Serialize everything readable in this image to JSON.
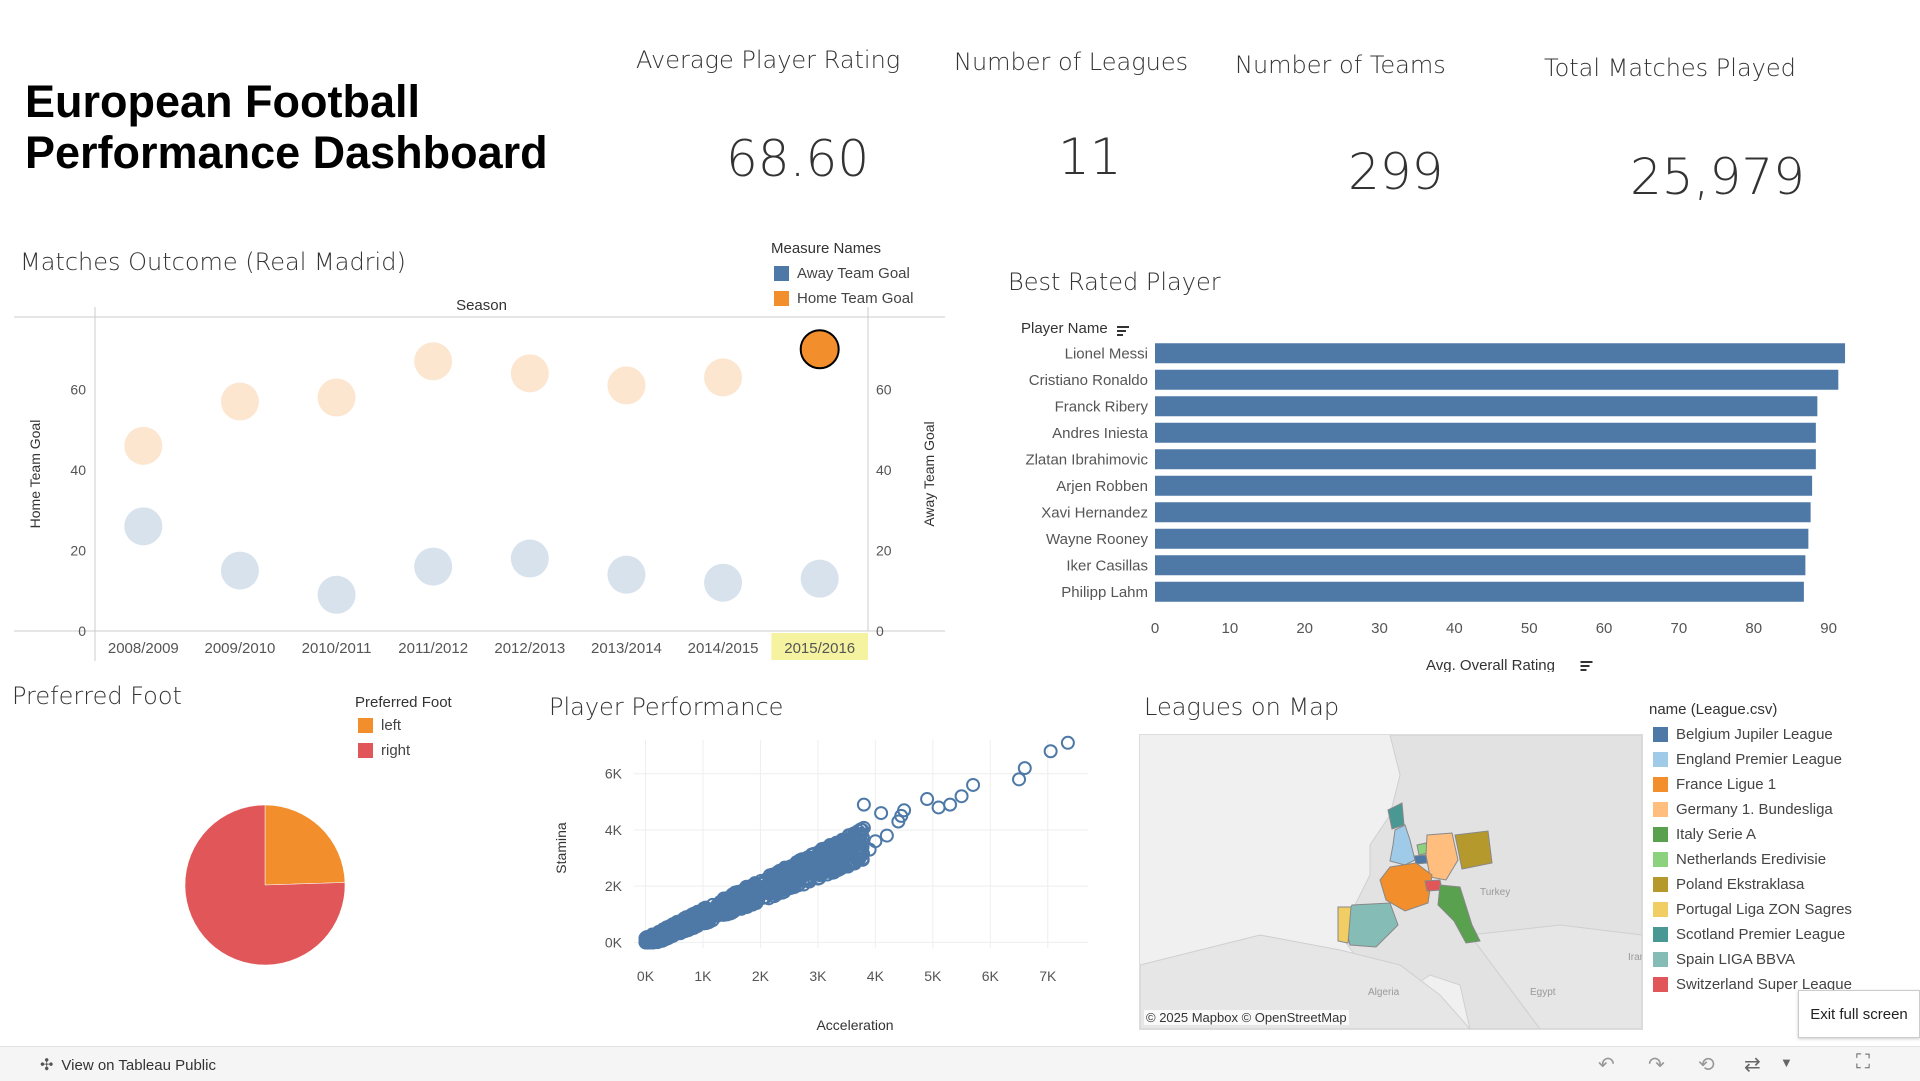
{
  "dashboard": {
    "title": "European Football Performance Dashboard"
  },
  "kpis": [
    {
      "label": "Average Player Rating",
      "value": "68.60"
    },
    {
      "label": "Number of Leagues",
      "value": "11"
    },
    {
      "label": "Number of Teams",
      "value": "299"
    },
    {
      "label": "Total Matches Played",
      "value": "25,979"
    }
  ],
  "matches_outcome": {
    "title": "Matches Outcome (Real Madrid)",
    "legend_title": "Measure Names",
    "legend": [
      {
        "label": "Away Team Goal",
        "color": "#4e79a7"
      },
      {
        "label": "Home Team Goal",
        "color": "#f28e2b"
      }
    ],
    "season_label": "Season",
    "highlighted_season": "2015/2016"
  },
  "best_rated": {
    "title": "Best Rated Player",
    "header": "Player Name",
    "xlabel": "Avg. Overall Rating"
  },
  "preferred_foot": {
    "title": "Preferred Foot",
    "legend_title": "Preferred Foot",
    "legend": [
      {
        "label": "left",
        "color": "#f28e2b"
      },
      {
        "label": "right",
        "color": "#e15759"
      }
    ]
  },
  "player_performance": {
    "title": "Player Performance"
  },
  "leagues_map": {
    "title": "Leagues on Map",
    "legend_title": "name (League.csv)",
    "legend": [
      {
        "label": "Belgium Jupiler League",
        "color": "#4e79a7"
      },
      {
        "label": "England Premier League",
        "color": "#a0cbe8"
      },
      {
        "label": "France Ligue 1",
        "color": "#f28e2b"
      },
      {
        "label": "Germany 1. Bundesliga",
        "color": "#ffbe7d"
      },
      {
        "label": "Italy Serie A",
        "color": "#59a14f"
      },
      {
        "label": "Netherlands Eredivisie",
        "color": "#8cd17d"
      },
      {
        "label": "Poland Ekstraklasa",
        "color": "#b6992d"
      },
      {
        "label": "Portugal Liga ZON Sagres",
        "color": "#f1ce63"
      },
      {
        "label": "Scotland Premier League",
        "color": "#499894"
      },
      {
        "label": "Spain LIGA BBVA",
        "color": "#86bcb6"
      },
      {
        "label": "Switzerland Super League",
        "color": "#e15759"
      }
    ],
    "attribution": "© 2025 Mapbox  © OpenStreetMap",
    "map_labels": [
      "Turkey",
      "Algeria",
      "Egypt",
      "Iran"
    ]
  },
  "footer": {
    "view_on_tableau": "View on Tableau Public",
    "exit_full_screen": "Exit full screen"
  },
  "chart_data": [
    {
      "type": "scatter",
      "title": "Matches Outcome (Real Madrid)",
      "xlabel": "Season",
      "ylabel": "Home Team Goal",
      "y2label": "Away Team Goal",
      "categories": [
        "2008/2009",
        "2009/2010",
        "2010/2011",
        "2011/2012",
        "2012/2013",
        "2013/2014",
        "2014/2015",
        "2015/2016"
      ],
      "series": [
        {
          "name": "Home Team Goal",
          "values": [
            46,
            57,
            58,
            67,
            64,
            61,
            63,
            70
          ]
        },
        {
          "name": "Away Team Goal",
          "values": [
            26,
            15,
            9,
            16,
            18,
            14,
            12,
            13
          ]
        }
      ],
      "yticks": [
        0,
        20,
        40,
        60
      ],
      "ylim": [
        0,
        78
      ]
    },
    {
      "type": "bar",
      "title": "Best Rated Player",
      "xlabel": "Avg. Overall Rating",
      "categories": [
        "Lionel Messi",
        "Cristiano Ronaldo",
        "Franck Ribery",
        "Andres Iniesta",
        "Zlatan Ibrahimovic",
        "Arjen Robben",
        "Xavi Hernandez",
        "Wayne Rooney",
        "Iker Casillas",
        "Philipp Lahm"
      ],
      "values": [
        92.2,
        91.3,
        88.5,
        88.3,
        88.3,
        87.8,
        87.6,
        87.3,
        86.9,
        86.7
      ],
      "xticks": [
        0,
        10,
        20,
        30,
        40,
        50,
        60,
        70,
        80,
        90
      ],
      "xlim": [
        0,
        95
      ]
    },
    {
      "type": "pie",
      "title": "Preferred Foot",
      "labels": [
        "left",
        "right"
      ],
      "values": [
        24.5,
        75.5
      ]
    },
    {
      "type": "scatter",
      "title": "Player Performance",
      "xlabel": "Acceleration",
      "ylabel": "Stamina",
      "xticks": [
        "0K",
        "1K",
        "2K",
        "3K",
        "4K",
        "5K",
        "6K",
        "7K"
      ],
      "yticks": [
        "0K",
        "2K",
        "4K",
        "6K"
      ],
      "xlim": [
        -200,
        7700
      ],
      "ylim": [
        -200,
        7200
      ],
      "outliers": [
        [
          3800,
          4900
        ],
        [
          4100,
          4600
        ],
        [
          4400,
          4300
        ],
        [
          4450,
          4500
        ],
        [
          4500,
          4700
        ],
        [
          4900,
          5100
        ],
        [
          5100,
          4800
        ],
        [
          5300,
          4900
        ],
        [
          5500,
          5200
        ],
        [
          5700,
          5600
        ],
        [
          6500,
          5800
        ],
        [
          6600,
          6200
        ],
        [
          7050,
          6800
        ],
        [
          7350,
          7100
        ],
        [
          4200,
          3800
        ],
        [
          4000,
          3600
        ],
        [
          3900,
          3300
        ],
        [
          3700,
          3400
        ],
        [
          3600,
          3100
        ],
        [
          3200,
          3000
        ],
        [
          2700,
          2600
        ]
      ]
    }
  ]
}
